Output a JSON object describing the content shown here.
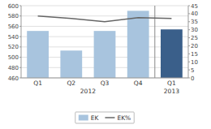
{
  "chart_data": {
    "type": "bar",
    "categories": [
      "Q1",
      "Q2",
      "Q3",
      "Q4",
      "Q1"
    ],
    "series": [
      {
        "name": "EK",
        "type": "bar",
        "axis": "y",
        "values": [
          551,
          513,
          551,
          590,
          554
        ],
        "colors": [
          "#a8c4de",
          "#a8c4de",
          "#a8c4de",
          "#a8c4de",
          "#3a5f8a"
        ]
      },
      {
        "name": "EK%",
        "type": "line",
        "axis": "y2",
        "color": "#666666",
        "values": [
          38.5,
          37.0,
          35.0,
          37.5,
          37.0
        ]
      }
    ],
    "annotations": [
      {
        "text": "2012",
        "x": 1.5
      },
      {
        "text": "2013",
        "x": 4.0
      },
      {
        "type": "line",
        "x": 3.5,
        "color": "#888888"
      }
    ],
    "ylim": [
      460,
      600
    ],
    "yticks": [
      460,
      480,
      500,
      520,
      540,
      560,
      580,
      600
    ],
    "y2lim": [
      0.0,
      45.0
    ],
    "y2ticks": [
      0.0,
      5.0,
      10.0,
      15.0,
      20.0,
      25.0,
      30.0,
      35.0,
      40.0,
      45.0
    ],
    "grid": true,
    "legend": "bottom"
  }
}
